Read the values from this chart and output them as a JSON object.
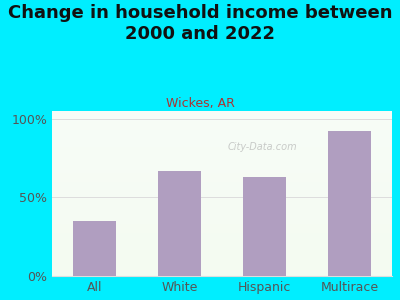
{
  "title": "Change in household income between\n2000 and 2022",
  "subtitle": "Wickes, AR",
  "categories": [
    "All",
    "White",
    "Hispanic",
    "Multirace"
  ],
  "values": [
    35,
    67,
    63,
    92
  ],
  "bar_color": "#b09ec0",
  "title_fontsize": 13,
  "subtitle_fontsize": 9,
  "subtitle_color": "#aa3333",
  "tick_labels": [
    "0%",
    "50%",
    "100%"
  ],
  "tick_values": [
    0,
    50,
    100
  ],
  "ylim": [
    0,
    105
  ],
  "background_outer": "#00eeff",
  "axis_label_color": "#555555",
  "grid_color": "#dddddd",
  "watermark": "City-Data.com"
}
